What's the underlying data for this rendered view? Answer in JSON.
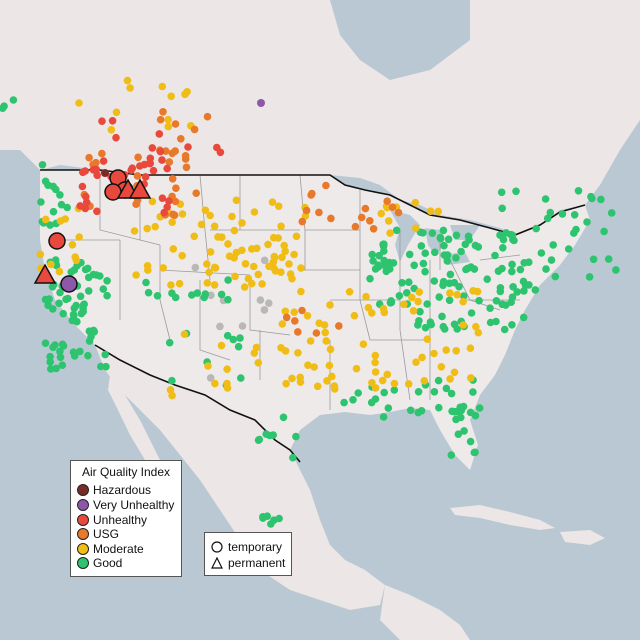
{
  "colors": {
    "water": "#b9c8d2",
    "land": "#ece6e6",
    "us_land": "#eeeaea",
    "state_border": "#9a9a9a",
    "country_border": "#111111",
    "hazardous": "#7b2b25",
    "very_unhealthy": "#8e58a8",
    "unhealthy": "#e8493c",
    "usg": "#e8782a",
    "moderate": "#f0bd17",
    "good": "#2ec46f",
    "no_data": "#b8b8b8"
  },
  "legend": {
    "title": "Air Quality Index",
    "items": [
      {
        "label": "Hazardous",
        "key": "hazardous"
      },
      {
        "label": "Very Unhealthy",
        "key": "very_unhealthy"
      },
      {
        "label": "Unhealthy",
        "key": "unhealthy"
      },
      {
        "label": "USG",
        "key": "usg"
      },
      {
        "label": "Moderate",
        "key": "moderate"
      },
      {
        "label": "Good",
        "key": "good"
      }
    ]
  },
  "shape_legend": {
    "items": [
      {
        "label": "temporary",
        "shape": "circle-icon"
      },
      {
        "label": "permanent",
        "shape": "triangle-icon"
      }
    ]
  }
}
